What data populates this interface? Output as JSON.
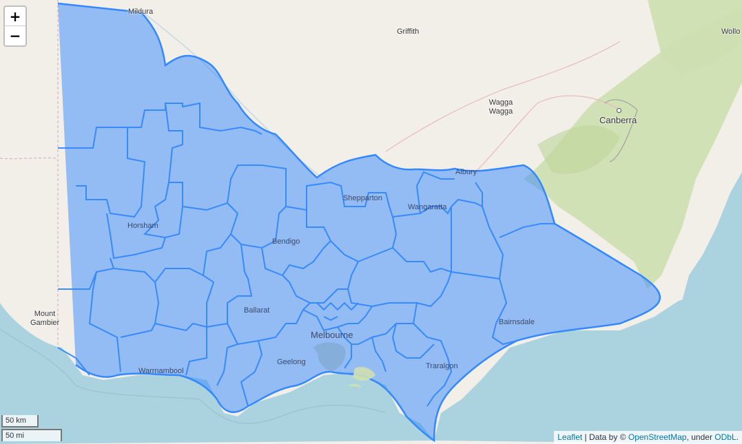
{
  "map": {
    "places": [
      {
        "name": "Mildura",
        "kind": "town"
      },
      {
        "name": "Griffith",
        "kind": "town"
      },
      {
        "name": "Wagga Wagga",
        "kind": "town"
      },
      {
        "name": "Canberra",
        "kind": "capital"
      },
      {
        "name": "Wollo",
        "kind": "town"
      },
      {
        "name": "Albury",
        "kind": "town"
      },
      {
        "name": "Shepparton",
        "kind": "town"
      },
      {
        "name": "Wangaratta",
        "kind": "town"
      },
      {
        "name": "Horsham",
        "kind": "town"
      },
      {
        "name": "Bendigo",
        "kind": "town"
      },
      {
        "name": "Ballarat",
        "kind": "town"
      },
      {
        "name": "Melbourne",
        "kind": "city"
      },
      {
        "name": "Geelong",
        "kind": "town"
      },
      {
        "name": "Warrnambool",
        "kind": "town"
      },
      {
        "name": "Traralgon",
        "kind": "town"
      },
      {
        "name": "Bairnsdale",
        "kind": "town"
      },
      {
        "name": "Mount Gambier",
        "kind": "town"
      }
    ],
    "overlay_color": "#3388ff",
    "sea_color": "#aad3df",
    "land_color": "#f2efe9",
    "forest_color": "#c8dfa8"
  },
  "zoom": {
    "in_label": "+",
    "out_label": "−"
  },
  "scale": {
    "km_label": "50 km",
    "mi_label": "50 mi"
  },
  "attribution": {
    "leaflet": "Leaflet",
    "text1": " | Data by © ",
    "osm": "OpenStreetMap",
    "text2": ", under ",
    "odbl": "ODbL",
    "text3": "."
  }
}
